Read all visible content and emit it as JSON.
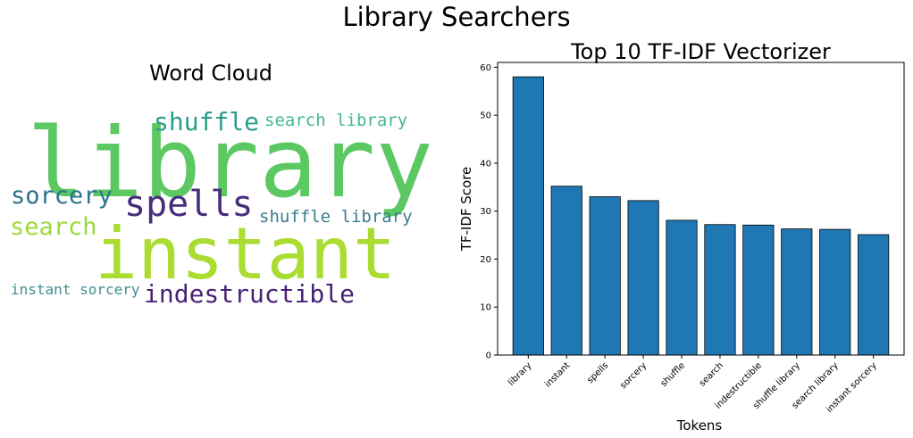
{
  "page": {
    "suptitle": "Library Searchers"
  },
  "wordcloud": {
    "title": "Word Cloud",
    "words": [
      {
        "text": "library",
        "color": "#5bc862"
      },
      {
        "text": "instant",
        "color": "#aadc32"
      },
      {
        "text": "spells",
        "color": "#472d7b"
      },
      {
        "text": "shuffle",
        "color": "#2a9d8a"
      },
      {
        "text": "search library",
        "color": "#42b597"
      },
      {
        "text": "sorcery",
        "color": "#2c738e"
      },
      {
        "text": "search",
        "color": "#9bd93c"
      },
      {
        "text": "shuffle library",
        "color": "#3b7d8f"
      },
      {
        "text": "indestructible",
        "color": "#482374"
      },
      {
        "text": "instant sorcery",
        "color": "#3d8f91"
      }
    ]
  },
  "chart_data": {
    "type": "bar",
    "title": "Top 10 TF-IDF Vectorizer",
    "xlabel": "Tokens",
    "ylabel": "TF-IDF Score",
    "categories": [
      "library",
      "instant",
      "spells",
      "sorcery",
      "shuffle",
      "search",
      "indestructible",
      "shuffle library",
      "search library",
      "instant sorcery"
    ],
    "values": [
      58,
      35.2,
      33,
      32.2,
      28.1,
      27.2,
      27.1,
      26.3,
      26.2,
      25.1
    ],
    "ylim": [
      0,
      61
    ],
    "yticks": [
      0,
      10,
      20,
      30,
      40,
      50,
      60
    ],
    "bar_color": "#1f77b4",
    "grid": false
  }
}
